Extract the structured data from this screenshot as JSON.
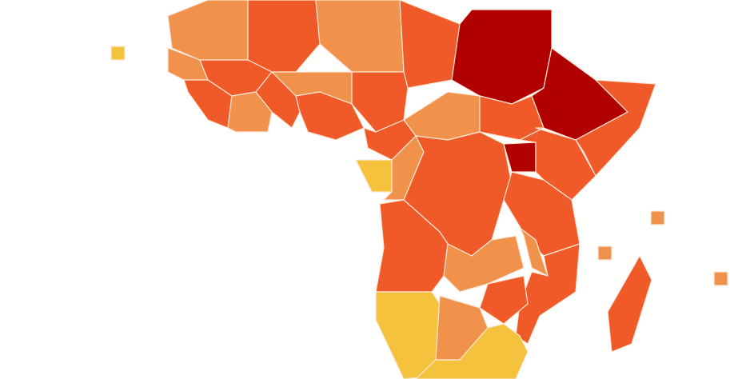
{
  "map": {
    "palette": [
      "#f5c23d",
      "#f0914c",
      "#f05a28",
      "#b10000"
    ]
  }
}
